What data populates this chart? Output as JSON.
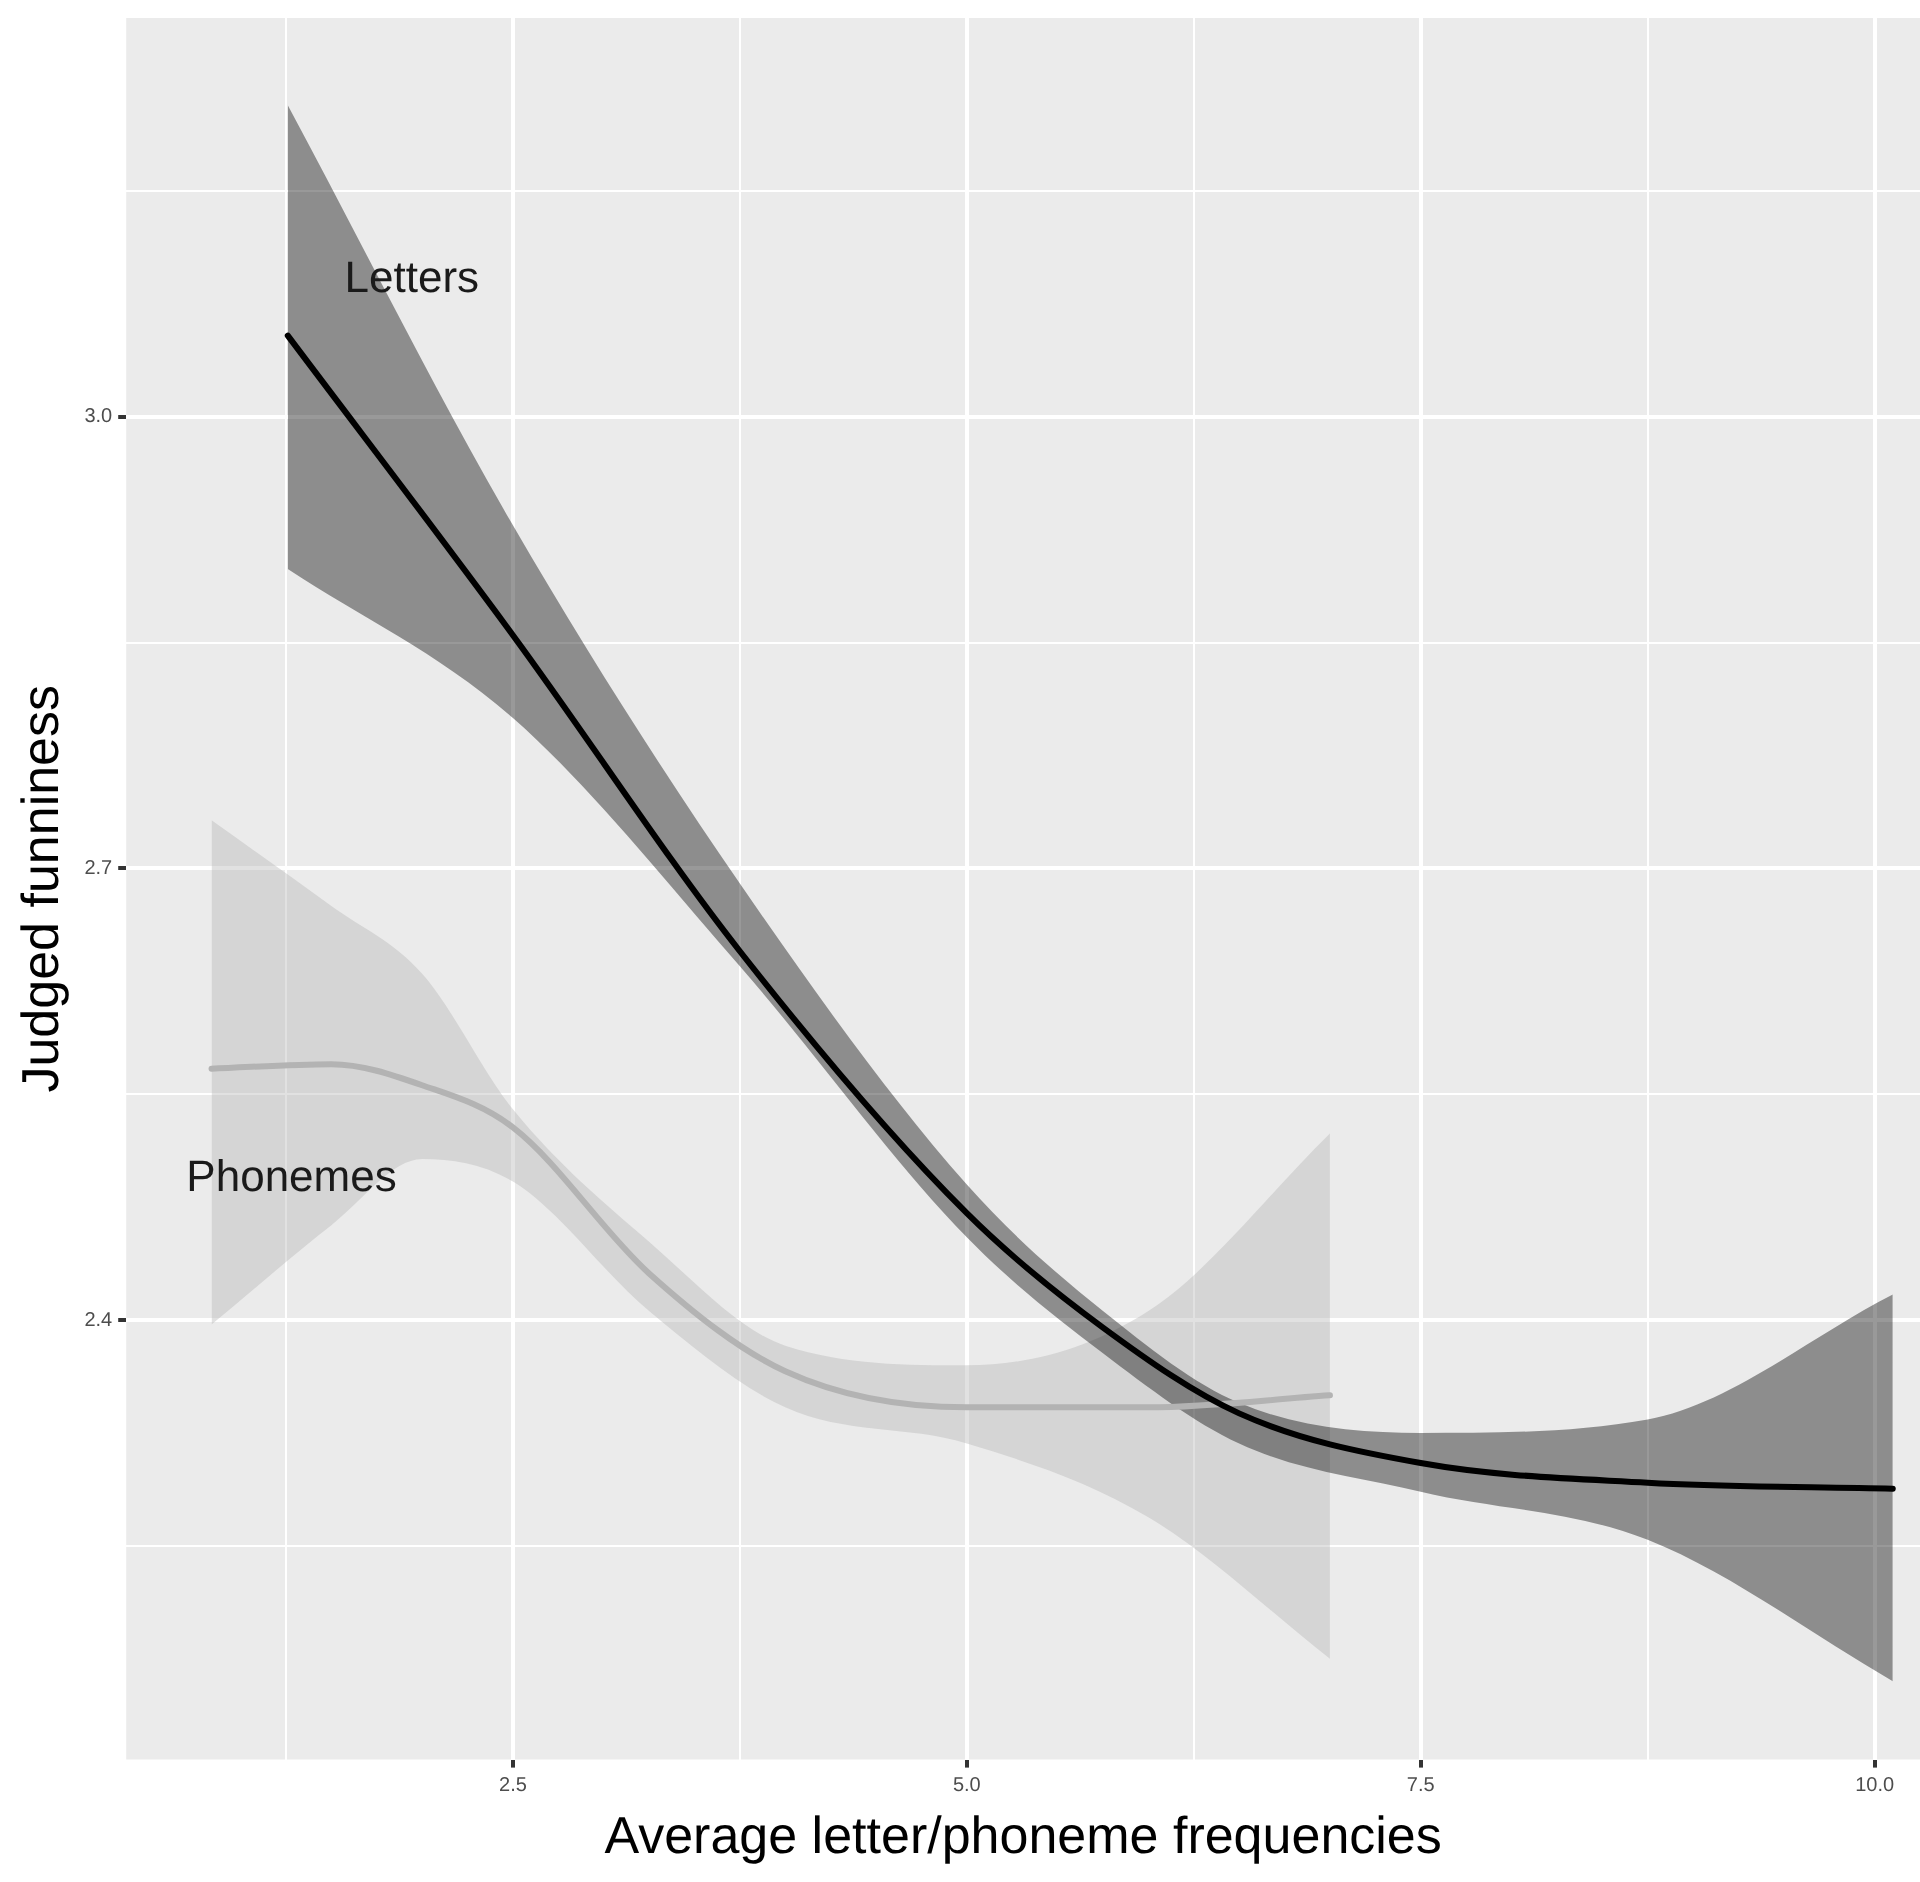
{
  "chart_data": {
    "type": "line",
    "xlabel": "Average letter/phoneme frequencies",
    "ylabel": "Judged funniness",
    "xlim": [
      0.37,
      10.25
    ],
    "ylim": [
      2.108,
      3.265
    ],
    "xticks": [
      {
        "value": 1.25,
        "label": null
      },
      2.5,
      {
        "value": 3.75,
        "label": null
      },
      "5.0",
      {
        "value": 6.25,
        "label": null
      },
      7.5,
      {
        "value": 8.75,
        "label": null
      },
      "10.0"
    ],
    "yticks": [
      {
        "value": 2.25,
        "label": null
      },
      2.4,
      {
        "value": 2.55,
        "label": null
      },
      2.7,
      {
        "value": 2.85,
        "label": null
      },
      "3.0",
      {
        "value": 3.15,
        "label": null
      }
    ],
    "grid": true,
    "legend": false,
    "marker": "none",
    "line_style": "solid",
    "series": [
      {
        "name": "Letters",
        "color": "#000000",
        "x": [
          1.26,
          2.5,
          3.75,
          5.0,
          5.75,
          6.5,
          7.5,
          8.75,
          10.1
        ],
        "values": [
          3.054,
          2.855,
          2.645,
          2.471,
          2.395,
          2.338,
          2.305,
          2.292,
          2.288
        ],
        "lower": [
          2.899,
          2.8,
          2.635,
          2.455,
          2.378,
          2.318,
          2.286,
          2.254,
          2.16
        ],
        "upper": [
          3.207,
          2.928,
          2.69,
          2.49,
          2.406,
          2.345,
          2.325,
          2.334,
          2.417
        ]
      },
      {
        "name": "Phonemes",
        "color": "#b3b3b3",
        "x": [
          0.84,
          1.5,
          2.0,
          2.5,
          3.25,
          4.0,
          5.0,
          6.0,
          7.0
        ],
        "values": [
          2.567,
          2.57,
          2.556,
          2.528,
          2.431,
          2.366,
          2.342,
          2.342,
          2.35
        ],
        "lower": [
          2.397,
          2.463,
          2.507,
          2.492,
          2.406,
          2.342,
          2.318,
          2.269,
          2.175
        ],
        "upper": [
          2.732,
          2.675,
          2.63,
          2.54,
          2.452,
          2.383,
          2.37,
          2.406,
          2.524
        ]
      }
    ]
  }
}
